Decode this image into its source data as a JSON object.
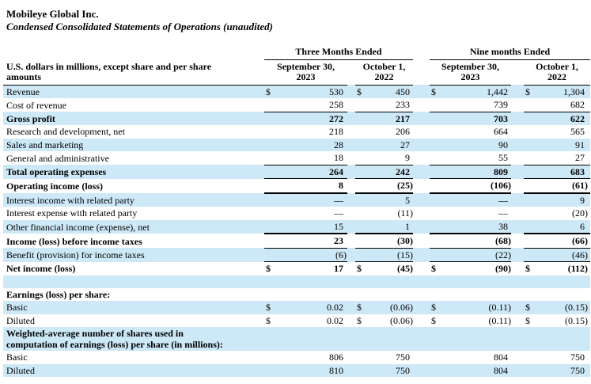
{
  "colors": {
    "row_highlight": "#CDE8F7",
    "text": "#000000"
  },
  "header": {
    "company": "Mobileye Global Inc.",
    "statement_title": "Condensed Consolidated Statements of Operations (unaudited)"
  },
  "table": {
    "unit_label": "U.S. dollars in millions, except share and per share\namounts",
    "period_groups": [
      "Three Months Ended",
      "Nine months Ended"
    ],
    "columns": [
      {
        "line1": "September 30,",
        "line2": "2023"
      },
      {
        "line1": "October 1,",
        "line2": "2022"
      },
      {
        "line1": "September 30,",
        "line2": "2023"
      },
      {
        "line1": "October 1,",
        "line2": "2022"
      }
    ],
    "rows": [
      {
        "label": "Revenue",
        "values": [
          "530",
          "450",
          "1,442",
          "1,304"
        ],
        "shaded": true,
        "dollar": true
      },
      {
        "label": "Cost of revenue",
        "values": [
          "258",
          "233",
          "739",
          "682"
        ],
        "border": "thin"
      },
      {
        "label": "Gross profit",
        "values": [
          "272",
          "217",
          "703",
          "622"
        ],
        "shaded": true,
        "bold": true
      },
      {
        "label": "Research and development, net",
        "values": [
          "218",
          "206",
          "664",
          "565"
        ]
      },
      {
        "label": "Sales and marketing",
        "values": [
          "28",
          "27",
          "90",
          "91"
        ],
        "shaded": true
      },
      {
        "label": "General and administrative",
        "values": [
          "18",
          "9",
          "55",
          "27"
        ],
        "border": "thin"
      },
      {
        "label": "Total operating expenses",
        "values": [
          "264",
          "242",
          "809",
          "683"
        ],
        "shaded": true,
        "bold": true,
        "border": "thin"
      },
      {
        "label": "Operating income (loss)",
        "values": [
          "8",
          "(25)",
          "(106)",
          "(61)"
        ],
        "bold": true,
        "border": "thick"
      },
      {
        "label": "Interest income with related party",
        "values": [
          "—",
          "5",
          "—",
          "9"
        ],
        "shaded": true
      },
      {
        "label": "Interest expense with related party",
        "values": [
          "—",
          "(11)",
          "—",
          "(20)"
        ]
      },
      {
        "label": "Other financial income (expense), net",
        "values": [
          "15",
          "1",
          "38",
          "6"
        ],
        "shaded": true,
        "border": "thick"
      },
      {
        "label": "Income (loss) before income taxes",
        "values": [
          "23",
          "(30)",
          "(68)",
          "(66)"
        ],
        "bold": true,
        "border": "thin"
      },
      {
        "label": "Benefit (provision) for income taxes",
        "values": [
          "(6)",
          "(15)",
          "(22)",
          "(46)"
        ],
        "shaded": true,
        "border": "thin"
      },
      {
        "label": "Net income (loss)",
        "values": [
          "17",
          "(45)",
          "(90)",
          "(112)"
        ],
        "bold": true,
        "dollar": true
      },
      {
        "type": "blank",
        "shaded": true
      },
      {
        "type": "section",
        "label": "Earnings (loss) per share:",
        "bold": true
      },
      {
        "label": "Basic",
        "values": [
          "0.02",
          "(0.06)",
          "(0.11)",
          "(0.15)"
        ],
        "shaded": true,
        "dollar": true
      },
      {
        "label": "Diluted",
        "values": [
          "0.02",
          "(0.06)",
          "(0.11)",
          "(0.15)"
        ],
        "dollar": true
      },
      {
        "type": "section",
        "label": "Weighted-average number of shares used in\ncomputation of earnings (loss) per share (in millions):",
        "shaded": true,
        "bold": true
      },
      {
        "label": "Basic",
        "values": [
          "806",
          "750",
          "804",
          "750"
        ]
      },
      {
        "label": "Diluted",
        "values": [
          "810",
          "750",
          "804",
          "750"
        ],
        "shaded": true
      }
    ]
  }
}
